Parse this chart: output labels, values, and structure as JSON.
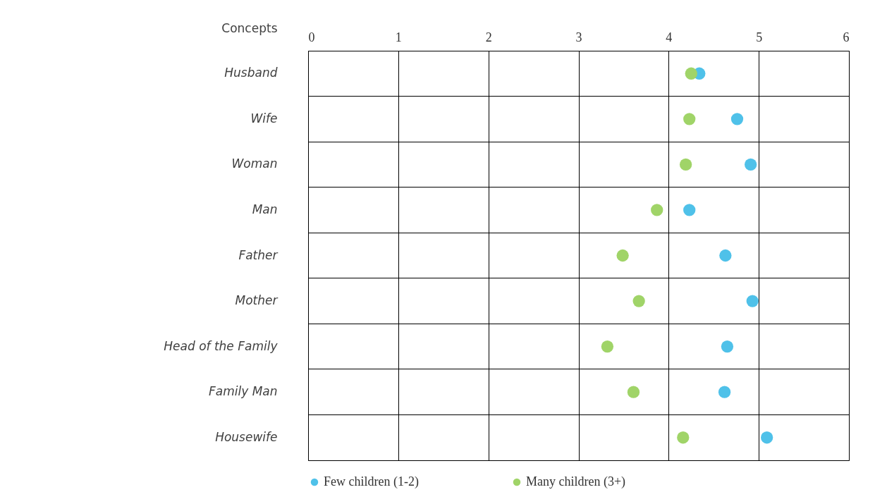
{
  "chart_data": {
    "type": "scatter",
    "ylabel": "Concepts",
    "orientation": "horizontal",
    "categories": [
      "Husband",
      "Wife",
      "Woman",
      "Man",
      "Father",
      "Mother",
      "Head of the Family",
      "Family Man",
      "Housewife"
    ],
    "series": [
      {
        "name": "Few children (1-2)",
        "color": "#4fc1e9",
        "values": [
          4.34,
          4.76,
          4.91,
          4.23,
          4.63,
          4.93,
          4.65,
          4.62,
          5.09
        ]
      },
      {
        "name": "Many children (3+)",
        "color": "#a0d468",
        "values": [
          4.25,
          4.23,
          4.19,
          3.87,
          3.49,
          3.67,
          3.32,
          3.61,
          4.16
        ]
      }
    ],
    "xlim": [
      0,
      6
    ],
    "xticks": [
      0,
      1,
      2,
      3,
      4,
      5,
      6
    ],
    "grid": true,
    "legend": "bottom",
    "marker": "circle"
  }
}
